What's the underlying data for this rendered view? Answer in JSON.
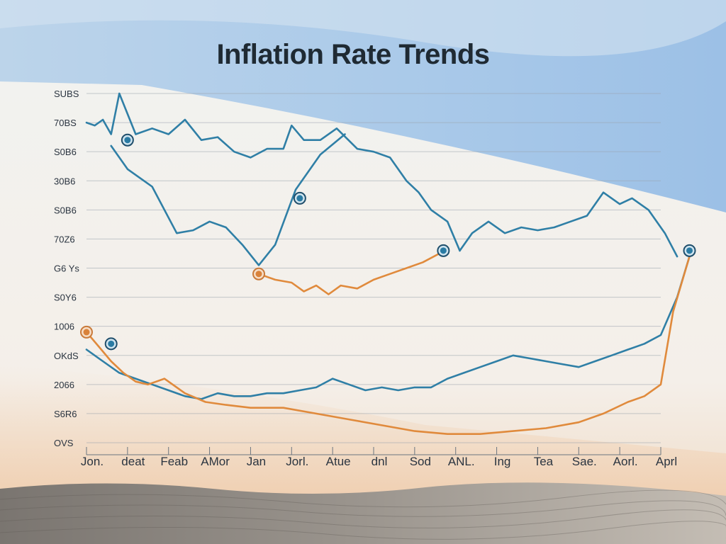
{
  "chart_data": {
    "type": "line",
    "title": "Inflation Rate Trends",
    "yticks": [
      "SUBS",
      "70BS",
      "S0B6",
      "30B6",
      "S0B6",
      "70Z6",
      "G6 Ys",
      "S0Y6",
      "1006",
      "OKdS",
      "2066",
      "S6R6",
      "OVS"
    ],
    "xticks": [
      "Jon.",
      "deat",
      "Feab",
      "AMor",
      "Jan",
      "Jorl.",
      "Atue",
      "dnl",
      "Sod",
      "ANL.",
      "Ing",
      "Tea",
      "Sae.",
      "Aorl.",
      "Aprl"
    ],
    "x_count": 15,
    "ylim": [
      0,
      12
    ],
    "grid": true,
    "colors": {
      "blue": "#2f7fa6",
      "orange": "#e08a3c",
      "marker_ring": "#1f4e6b"
    },
    "series": [
      {
        "color": "blue",
        "values": [
          [
            0.0,
            11.0
          ],
          [
            0.2,
            10.9
          ],
          [
            0.4,
            11.1
          ],
          [
            0.6,
            10.6
          ],
          [
            0.8,
            12.0
          ],
          [
            1.2,
            10.6
          ],
          [
            1.6,
            10.8
          ],
          [
            2.0,
            10.6
          ],
          [
            2.4,
            11.1
          ],
          [
            2.8,
            10.4
          ],
          [
            3.2,
            10.5
          ],
          [
            3.6,
            10.0
          ],
          [
            4.0,
            9.8
          ],
          [
            4.4,
            10.1
          ],
          [
            4.8,
            10.1
          ],
          [
            5.0,
            10.9
          ],
          [
            5.3,
            10.4
          ],
          [
            5.7,
            10.4
          ],
          [
            6.1,
            10.8
          ],
          [
            6.6,
            10.1
          ],
          [
            7.0,
            10.0
          ],
          [
            7.4,
            9.8
          ],
          [
            7.8,
            9.0
          ],
          [
            8.1,
            8.6
          ],
          [
            8.4,
            8.0
          ],
          [
            8.8,
            7.6
          ],
          [
            9.1,
            6.6
          ]
        ]
      },
      {
        "color": "blue",
        "values": [
          [
            0.6,
            10.2
          ],
          [
            1.0,
            9.4
          ],
          [
            1.6,
            8.8
          ],
          [
            2.2,
            7.2
          ],
          [
            2.6,
            7.3
          ],
          [
            3.0,
            7.6
          ],
          [
            3.4,
            7.4
          ],
          [
            3.8,
            6.8
          ],
          [
            4.2,
            6.1
          ],
          [
            4.6,
            6.8
          ],
          [
            5.1,
            8.7
          ],
          [
            5.7,
            9.9
          ],
          [
            6.3,
            10.6
          ]
        ]
      },
      {
        "color": "blue",
        "values": [
          [
            9.1,
            6.6
          ],
          [
            9.4,
            7.2
          ],
          [
            9.8,
            7.6
          ],
          [
            10.2,
            7.2
          ],
          [
            10.6,
            7.4
          ],
          [
            11.0,
            7.3
          ],
          [
            11.4,
            7.4
          ],
          [
            11.8,
            7.6
          ],
          [
            12.2,
            7.8
          ],
          [
            12.6,
            8.6
          ],
          [
            13.0,
            8.2
          ],
          [
            13.3,
            8.4
          ],
          [
            13.7,
            8.0
          ],
          [
            14.1,
            7.2
          ],
          [
            14.4,
            6.4
          ]
        ]
      },
      {
        "color": "blue",
        "values": [
          [
            0.0,
            3.2
          ],
          [
            0.4,
            2.8
          ],
          [
            0.8,
            2.4
          ],
          [
            1.2,
            2.2
          ],
          [
            1.6,
            2.0
          ],
          [
            2.0,
            1.8
          ],
          [
            2.4,
            1.6
          ],
          [
            2.8,
            1.5
          ],
          [
            3.2,
            1.7
          ],
          [
            3.6,
            1.6
          ],
          [
            4.0,
            1.6
          ],
          [
            4.4,
            1.7
          ],
          [
            4.8,
            1.7
          ],
          [
            5.2,
            1.8
          ],
          [
            5.6,
            1.9
          ],
          [
            6.0,
            2.2
          ],
          [
            6.4,
            2.0
          ],
          [
            6.8,
            1.8
          ],
          [
            7.2,
            1.9
          ],
          [
            7.6,
            1.8
          ],
          [
            8.0,
            1.9
          ],
          [
            8.4,
            1.9
          ],
          [
            8.8,
            2.2
          ],
          [
            9.2,
            2.4
          ],
          [
            9.6,
            2.6
          ],
          [
            10.0,
            2.8
          ],
          [
            10.4,
            3.0
          ],
          [
            10.8,
            2.9
          ],
          [
            11.2,
            2.8
          ],
          [
            11.6,
            2.7
          ],
          [
            12.0,
            2.6
          ],
          [
            12.4,
            2.8
          ],
          [
            12.8,
            3.0
          ],
          [
            13.2,
            3.2
          ],
          [
            13.6,
            3.4
          ],
          [
            14.0,
            3.7
          ],
          [
            14.4,
            5.0
          ],
          [
            14.7,
            6.4
          ]
        ]
      },
      {
        "color": "orange",
        "values": [
          [
            0.0,
            3.8
          ],
          [
            0.3,
            3.3
          ],
          [
            0.6,
            2.8
          ],
          [
            0.9,
            2.4
          ],
          [
            1.2,
            2.1
          ],
          [
            1.5,
            2.0
          ],
          [
            1.9,
            2.2
          ],
          [
            2.4,
            1.7
          ],
          [
            2.9,
            1.4
          ],
          [
            3.4,
            1.3
          ],
          [
            4.0,
            1.2
          ],
          [
            4.8,
            1.2
          ],
          [
            5.6,
            1.0
          ],
          [
            6.4,
            0.8
          ],
          [
            7.2,
            0.6
          ],
          [
            8.0,
            0.4
          ],
          [
            8.8,
            0.3
          ],
          [
            9.6,
            0.3
          ],
          [
            10.4,
            0.4
          ],
          [
            11.2,
            0.5
          ],
          [
            12.0,
            0.7
          ],
          [
            12.6,
            1.0
          ],
          [
            13.2,
            1.4
          ],
          [
            13.6,
            1.6
          ],
          [
            14.0,
            2.0
          ],
          [
            14.3,
            4.5
          ],
          [
            14.7,
            6.4
          ]
        ]
      },
      {
        "color": "orange",
        "values": [
          [
            4.2,
            5.8
          ],
          [
            4.6,
            5.6
          ],
          [
            5.0,
            5.5
          ],
          [
            5.3,
            5.2
          ],
          [
            5.6,
            5.4
          ],
          [
            5.9,
            5.1
          ],
          [
            6.2,
            5.4
          ],
          [
            6.6,
            5.3
          ],
          [
            7.0,
            5.6
          ],
          [
            7.4,
            5.8
          ],
          [
            7.8,
            6.0
          ],
          [
            8.2,
            6.2
          ],
          [
            8.6,
            6.5
          ]
        ]
      }
    ],
    "markers": [
      {
        "x": 0.0,
        "y": 3.8,
        "color": "orange"
      },
      {
        "x": 0.6,
        "y": 3.4,
        "color": "blue"
      },
      {
        "x": 1.0,
        "y": 10.4,
        "color": "blue"
      },
      {
        "x": 4.2,
        "y": 5.8,
        "color": "orange"
      },
      {
        "x": 5.2,
        "y": 8.4,
        "color": "blue"
      },
      {
        "x": 8.7,
        "y": 6.6,
        "color": "blue"
      },
      {
        "x": 14.7,
        "y": 6.6,
        "color": "blue"
      }
    ]
  }
}
